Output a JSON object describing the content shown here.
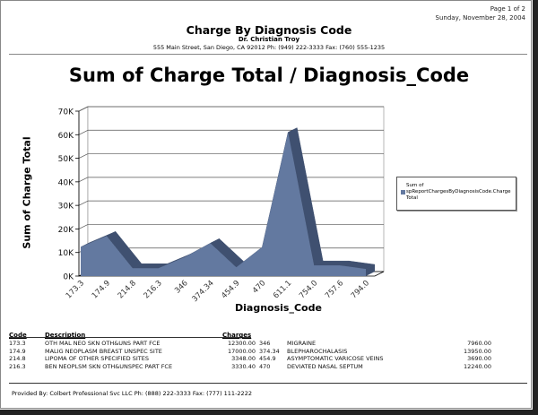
{
  "header": {
    "page": "Page 1 of 2",
    "date": "Sunday, November 28, 2004",
    "title": "Charge By Diagnosis Code",
    "doctor": "Dr. Christian Troy",
    "address": "555 Main Street, San Diego, CA 92012 Ph: (949) 222-3333 Fax: (760) 555-1235"
  },
  "chart_data": {
    "type": "area",
    "title": "Sum of Charge Total / Diagnosis_Code",
    "xlabel": "Diagnosis_Code",
    "ylabel": "Sum of Charge Total",
    "categories": [
      "173.3",
      "174.9",
      "214.8",
      "216.3",
      "346",
      "374.34",
      "454.9",
      "470",
      "611.1",
      "754.0",
      "757.6",
      "794.0"
    ],
    "series": [
      {
        "name": "Sum of spReportChargesByDiagnosisCode.Charge Total",
        "values": [
          12300,
          17000,
          3348,
          3330.4,
          7960,
          13950,
          3690,
          12240,
          61000,
          4500,
          4500,
          3000
        ]
      }
    ],
    "yticks": [
      "0K",
      "10K",
      "20K",
      "30K",
      "40K",
      "50K",
      "60K",
      "70K"
    ],
    "ylim": [
      0,
      70000
    ],
    "grid": true,
    "legend": "right",
    "three_d": true,
    "colors": {
      "front": "#6379a0",
      "depth": "#3f5070"
    }
  },
  "legend": {
    "line1": "Sum of",
    "line2": "spReportChargesByDiagnosisCode.Charge",
    "line3": "Total"
  },
  "table": {
    "headers": {
      "code": "Code",
      "description": "Description",
      "charges": "Charges"
    },
    "rows": [
      {
        "code": "173.3",
        "desc": "OTH MAL NEO SKN OTH&UNS PART FCE",
        "charge": "12300.00",
        "code2": "346",
        "desc2": "MIGRAINE",
        "charge2": "7960.00"
      },
      {
        "code": "174.9",
        "desc": "MALIG NEOPLASM BREAST UNSPEC SITE",
        "charge": "17000.00",
        "code2": "374.34",
        "desc2": "BLEPHAROCHALASIS",
        "charge2": "13950.00"
      },
      {
        "code": "214.8",
        "desc": "LIPOMA OF OTHER SPECIFIED SITES",
        "charge": "3348.00",
        "code2": "454.9",
        "desc2": "ASYMPTOMATIC VARICOSE VEINS",
        "charge2": "3690.00"
      },
      {
        "code": "216.3",
        "desc": "BEN NEOPLSM SKN OTH&UNSPEC PART FCE",
        "charge": "3330.40",
        "code2": "470",
        "desc2": "DEVIATED NASAL SEPTUM",
        "charge2": "12240.00"
      }
    ]
  },
  "footer": {
    "provided_by": "Provided By: Colbert Professional Svc LLC Ph: (888) 222-3333 Fax: (777) 111-2222"
  }
}
